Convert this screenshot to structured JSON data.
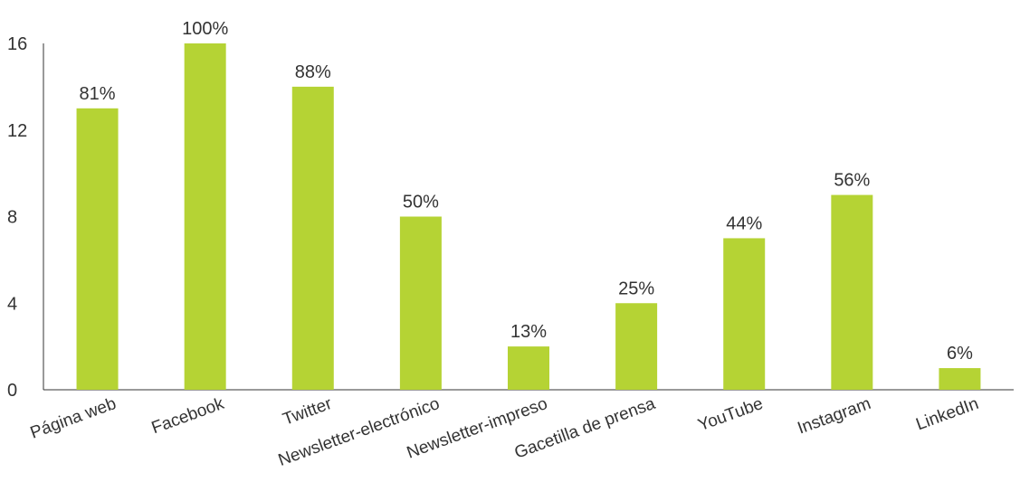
{
  "chart_data": {
    "type": "bar",
    "categories": [
      "Página web",
      "Facebook",
      "Twitter",
      "Newsletter-electrónico",
      "Newsletter-impreso",
      "Gacetilla de prensa",
      "YouTube",
      "Instagram",
      "LinkedIn"
    ],
    "values": [
      13,
      16,
      14,
      8,
      2,
      4,
      7,
      9,
      1
    ],
    "data_labels": [
      "81%",
      "100%",
      "88%",
      "50%",
      "13%",
      "25%",
      "44%",
      "56%",
      "6%"
    ],
    "ylim": [
      0,
      16
    ],
    "yticks": [
      "0",
      "4",
      "8",
      "12",
      "16"
    ],
    "title": "",
    "xlabel": "",
    "ylabel": "",
    "grid": false,
    "bar_color": "#b5d334",
    "axis_color": "#333333"
  }
}
